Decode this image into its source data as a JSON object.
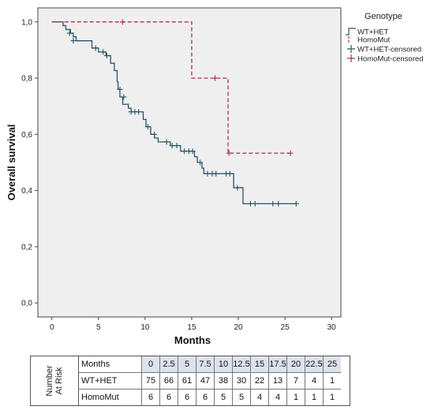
{
  "chart_data": {
    "type": "line",
    "subtype": "kaplan-meier",
    "title": "",
    "xlabel": "Months",
    "ylabel": "Overall survival",
    "xlim": [
      -1.5,
      31
    ],
    "ylim": [
      -0.05,
      1.05
    ],
    "xticks": [
      "0",
      "5",
      "10",
      "15",
      "20",
      "25",
      "30"
    ],
    "yticks": [
      "0,0",
      "0,2",
      "0,4",
      "0,6",
      "0,8",
      "1,0"
    ],
    "plot_background": "#efefef",
    "grid": false,
    "legend_position": "right",
    "legend_title": "Genotype",
    "legend": [
      "WT+HET",
      "HomoMut",
      "WT+HET-censored",
      "HomoMut-censored"
    ],
    "series": [
      {
        "name": "WT+HET",
        "color": "#2a5468",
        "style": "solid",
        "steps": [
          [
            0,
            1.0
          ],
          [
            1.2,
            0.987
          ],
          [
            1.5,
            0.973
          ],
          [
            2.0,
            0.96
          ],
          [
            2.3,
            0.947
          ],
          [
            2.6,
            0.933
          ],
          [
            4.3,
            0.907
          ],
          [
            5.0,
            0.893
          ],
          [
            5.8,
            0.88
          ],
          [
            6.3,
            0.853
          ],
          [
            6.7,
            0.827
          ],
          [
            7.0,
            0.787
          ],
          [
            7.1,
            0.76
          ],
          [
            7.3,
            0.733
          ],
          [
            7.6,
            0.707
          ],
          [
            8.2,
            0.693
          ],
          [
            8.5,
            0.68
          ],
          [
            9.8,
            0.653
          ],
          [
            10.1,
            0.627
          ],
          [
            10.6,
            0.6
          ],
          [
            11.0,
            0.587
          ],
          [
            11.4,
            0.573
          ],
          [
            12.7,
            0.56
          ],
          [
            13.8,
            0.54
          ],
          [
            15.3,
            0.52
          ],
          [
            15.6,
            0.5
          ],
          [
            16.1,
            0.48
          ],
          [
            16.3,
            0.46
          ],
          [
            19.5,
            0.41
          ],
          [
            20.5,
            0.353
          ],
          [
            26.3,
            0.353
          ]
        ],
        "censored": [
          [
            1.9,
            0.96
          ],
          [
            2.3,
            0.933
          ],
          [
            4.7,
            0.907
          ],
          [
            5.5,
            0.893
          ],
          [
            5.9,
            0.88
          ],
          [
            7.3,
            0.76
          ],
          [
            7.7,
            0.733
          ],
          [
            8.5,
            0.68
          ],
          [
            8.9,
            0.68
          ],
          [
            9.3,
            0.68
          ],
          [
            10.3,
            0.627
          ],
          [
            11.0,
            0.6
          ],
          [
            12.3,
            0.573
          ],
          [
            12.9,
            0.56
          ],
          [
            13.4,
            0.56
          ],
          [
            14.2,
            0.54
          ],
          [
            14.7,
            0.54
          ],
          [
            15.1,
            0.54
          ],
          [
            15.9,
            0.5
          ],
          [
            16.7,
            0.46
          ],
          [
            17.2,
            0.46
          ],
          [
            17.6,
            0.46
          ],
          [
            18.7,
            0.46
          ],
          [
            19.1,
            0.46
          ],
          [
            19.9,
            0.41
          ],
          [
            21.3,
            0.353
          ],
          [
            21.8,
            0.353
          ],
          [
            23.7,
            0.353
          ],
          [
            24.3,
            0.353
          ],
          [
            26.2,
            0.353
          ]
        ]
      },
      {
        "name": "HomoMut",
        "color": "#a8324a",
        "style": "dashed",
        "steps": [
          [
            0,
            1.0
          ],
          [
            15.0,
            0.8
          ],
          [
            18.9,
            0.533
          ],
          [
            25.7,
            0.533
          ]
        ],
        "censored": [
          [
            7.6,
            1.0
          ],
          [
            17.5,
            0.8
          ],
          [
            19.0,
            0.533
          ],
          [
            25.6,
            0.533
          ]
        ]
      }
    ]
  },
  "risk_table": {
    "side_label_line1": "Number",
    "side_label_line2": "At Risk",
    "header_label": "Months",
    "months": [
      "0",
      "2.5",
      "5",
      "7.5",
      "10",
      "12.5",
      "15",
      "17.5",
      "20",
      "22.5",
      "25"
    ],
    "rows": [
      {
        "label": "WT+HET",
        "values": [
          "75",
          "66",
          "61",
          "47",
          "38",
          "30",
          "22",
          "13",
          "7",
          "4",
          "1"
        ]
      },
      {
        "label": "HomoMut",
        "values": [
          "6",
          "6",
          "6",
          "6",
          "5",
          "5",
          "4",
          "4",
          "1",
          "1",
          "1"
        ]
      }
    ]
  }
}
